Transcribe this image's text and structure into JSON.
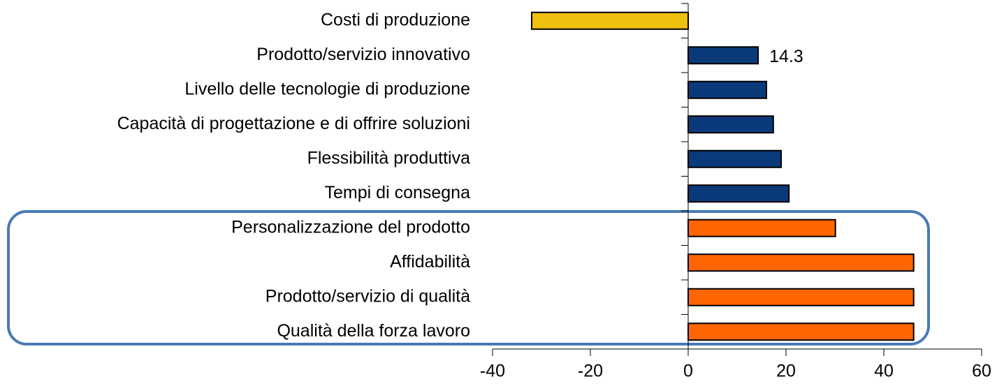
{
  "chart_data": {
    "type": "hbar",
    "categories": [
      "Costi di produzione",
      "Prodotto/servizio innovativo",
      "Livello delle tecnologie di produzione",
      "Capacità di progettazione e di offrire soluzioni",
      "Flessibilità produttiva",
      "Tempi di consegna",
      "Personalizzazione del prodotto",
      "Affidabilità",
      "Prodotto/servizio di qualità",
      "Qualità della forza lavoro"
    ],
    "values": [
      -32,
      14.3,
      16,
      17.4,
      19,
      20.6,
      30.1,
      46.1,
      46.1,
      46.1
    ],
    "value_labels": [
      null,
      "14.3",
      null,
      null,
      null,
      null,
      null,
      null,
      null,
      null
    ],
    "colors": [
      "#f0c010",
      "#0b3a7a",
      "#0b3a7a",
      "#0b3a7a",
      "#0b3a7a",
      "#0b3a7a",
      "#ff6600",
      "#ff6600",
      "#ff6600",
      "#ff6600"
    ],
    "xlim": [
      -40,
      60
    ],
    "xticks": [
      -40,
      -20,
      0,
      20,
      40,
      60
    ],
    "grid": false
  }
}
